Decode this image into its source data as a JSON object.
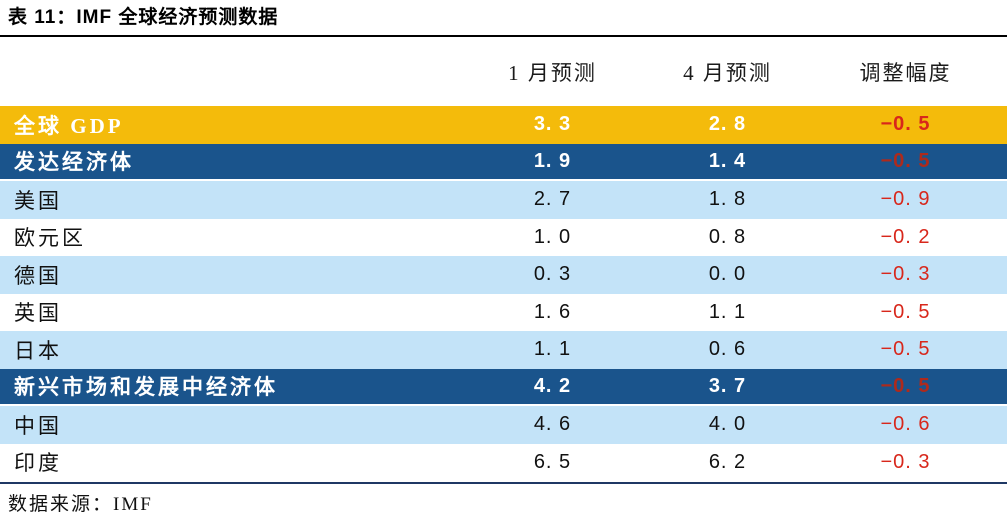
{
  "title": "表 11：IMF 全球经济预测数据",
  "columns": [
    "1 月预测",
    "4 月预测",
    "调整幅度"
  ],
  "table": {
    "rows": [
      {
        "label": "全球 GDP",
        "style": "gold",
        "jan": "3.3",
        "apr": "2.8",
        "delta": "-0.5"
      },
      {
        "label": "发达经济体",
        "style": "dark",
        "jan": "1.9",
        "apr": "1.4",
        "delta": "-0.5"
      },
      {
        "label": "美国",
        "style": "light",
        "jan": "2.7",
        "apr": "1.8",
        "delta": "-0.9"
      },
      {
        "label": "欧元区",
        "style": "plain",
        "jan": "1.0",
        "apr": "0.8",
        "delta": "-0.2"
      },
      {
        "label": "德国",
        "style": "light",
        "jan": "0.3",
        "apr": "0.0",
        "delta": "-0.3"
      },
      {
        "label": "英国",
        "style": "plain",
        "jan": "1.6",
        "apr": "1.1",
        "delta": "-0.5"
      },
      {
        "label": "日本",
        "style": "light",
        "jan": "1.1",
        "apr": "0.6",
        "delta": "-0.5"
      },
      {
        "label": "新兴市场和发展中经济体",
        "style": "dark",
        "jan": "4.2",
        "apr": "3.7",
        "delta": "-0.5"
      },
      {
        "label": "中国",
        "style": "light",
        "jan": "4.6",
        "apr": "4.0",
        "delta": "-0.6"
      },
      {
        "label": "印度",
        "style": "plain",
        "jan": "6.5",
        "apr": "6.2",
        "delta": "-0.3"
      }
    ]
  },
  "footer": {
    "source_label": "数据来源：IMF"
  },
  "palette": {
    "gold_row": "#F4BB0B",
    "dark_blue_row": "#1A548C",
    "light_blue_row": "#C3E3F8",
    "delta_red": "#D8271B",
    "delta_red_on_dark": "#AE2A1C",
    "title_rule": "#000000",
    "footer_rule": "#1F3864"
  },
  "chart_data": {
    "type": "table",
    "title": "表 11：IMF 全球经济预测数据",
    "columns": [
      "",
      "1 月预测",
      "4 月预测",
      "调整幅度"
    ],
    "rows": [
      [
        "全球 GDP",
        3.3,
        2.8,
        -0.5
      ],
      [
        "发达经济体",
        1.9,
        1.4,
        -0.5
      ],
      [
        "美国",
        2.7,
        1.8,
        -0.9
      ],
      [
        "欧元区",
        1.0,
        0.8,
        -0.2
      ],
      [
        "德国",
        0.3,
        0.0,
        -0.3
      ],
      [
        "英国",
        1.6,
        1.1,
        -0.5
      ],
      [
        "日本",
        1.1,
        0.6,
        -0.5
      ],
      [
        "新兴市场和发展中经济体",
        4.2,
        3.7,
        -0.5
      ],
      [
        "中国",
        4.6,
        4.0,
        -0.6
      ],
      [
        "印度",
        6.5,
        6.2,
        -0.3
      ]
    ],
    "highlight_rows": {
      "gold": [
        "全球 GDP"
      ],
      "dark_blue": [
        "发达经济体",
        "新兴市场和发展中经济体"
      ]
    },
    "source": "IMF"
  }
}
